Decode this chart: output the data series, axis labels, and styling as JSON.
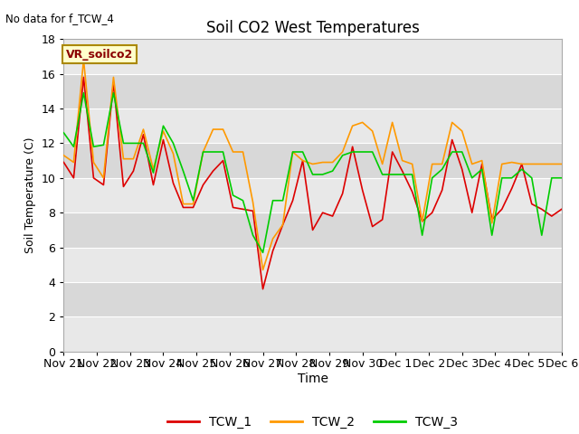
{
  "title": "Soil CO2 West Temperatures",
  "xlabel": "Time",
  "ylabel": "Soil Temperature (C)",
  "no_data_text": "No data for f_TCW_4",
  "legend_label": "VR_soilco2",
  "ylim": [
    0,
    18
  ],
  "series_colors": [
    "#dd0000",
    "#ff9900",
    "#00cc00"
  ],
  "series_names": [
    "TCW_1",
    "TCW_2",
    "TCW_3"
  ],
  "band_colors": [
    "#e8e8e8",
    "#d8d8d8"
  ],
  "tcw1": [
    10.9,
    10.0,
    15.8,
    10.0,
    9.6,
    15.5,
    9.5,
    10.4,
    12.5,
    9.6,
    12.2,
    9.7,
    8.3,
    8.3,
    9.6,
    10.4,
    11.0,
    8.3,
    8.2,
    8.1,
    3.6,
    5.8,
    7.3,
    8.7,
    11.0,
    7.0,
    8.0,
    7.8,
    9.1,
    11.8,
    9.3,
    7.2,
    7.6,
    11.5,
    10.4,
    9.2,
    7.5,
    8.0,
    9.3,
    12.2,
    10.5,
    8.0,
    10.8,
    7.6,
    8.2,
    9.4,
    10.8,
    8.5,
    8.2,
    7.8,
    8.2
  ],
  "tcw2": [
    11.3,
    10.9,
    16.8,
    10.9,
    10.0,
    15.8,
    11.1,
    11.1,
    12.8,
    10.5,
    12.7,
    11.4,
    8.5,
    8.5,
    11.5,
    12.8,
    12.8,
    11.5,
    11.5,
    8.6,
    4.7,
    6.5,
    7.3,
    11.5,
    11.0,
    10.8,
    10.9,
    10.9,
    11.5,
    13.0,
    13.2,
    12.7,
    10.8,
    13.2,
    11.0,
    10.8,
    7.5,
    10.8,
    10.8,
    13.2,
    12.7,
    10.8,
    11.0,
    7.4,
    10.8,
    10.9,
    10.8,
    10.8,
    10.8,
    10.8,
    10.8
  ],
  "tcw3": [
    12.6,
    11.8,
    14.9,
    11.8,
    11.9,
    14.9,
    12.0,
    12.0,
    12.0,
    10.3,
    13.0,
    12.0,
    10.4,
    8.7,
    11.5,
    11.5,
    11.5,
    9.0,
    8.7,
    6.7,
    5.7,
    8.7,
    8.7,
    11.5,
    11.5,
    10.2,
    10.2,
    10.4,
    11.3,
    11.5,
    11.5,
    11.5,
    10.2,
    10.2,
    10.2,
    10.2,
    6.7,
    10.0,
    10.5,
    11.5,
    11.5,
    10.0,
    10.5,
    6.7,
    10.0,
    10.0,
    10.5,
    10.0,
    6.7,
    10.0,
    10.0
  ],
  "x_tick_labels": [
    "Nov 21",
    "Nov 22",
    "Nov 23",
    "Nov 24",
    "Nov 25",
    "Nov 26",
    "Nov 27",
    "Nov 28",
    "Nov 29",
    "Nov 30",
    "Dec 1",
    "Dec 2",
    "Dec 3",
    "Dec 4",
    "Dec 5",
    "Dec 6"
  ],
  "n_points": 51,
  "figsize": [
    6.4,
    4.8
  ],
  "dpi": 100
}
